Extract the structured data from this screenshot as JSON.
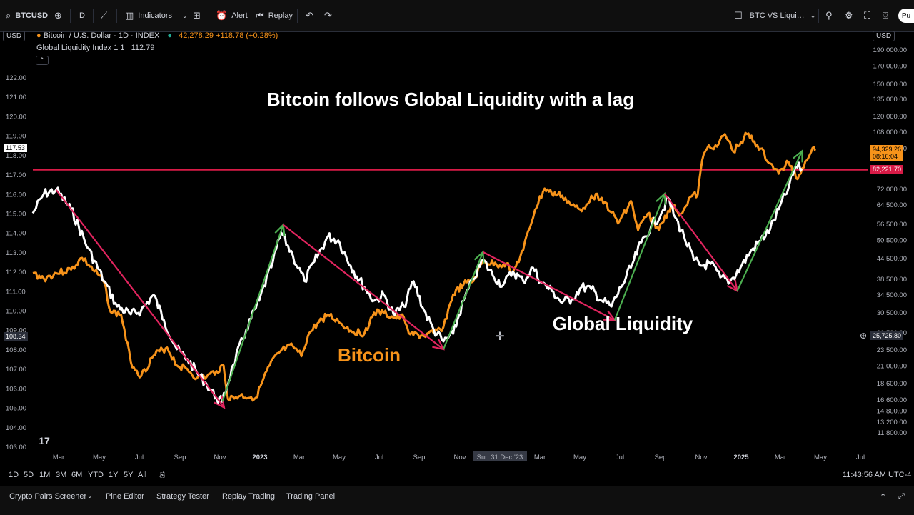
{
  "toolbar": {
    "symbol": "BTCUSD",
    "interval": "D",
    "indicators": "Indicators",
    "alert": "Alert",
    "replay": "Replay",
    "layout_name": "BTC VS Liqui…",
    "publish": "Pu"
  },
  "legend": {
    "currency_left": "USD",
    "currency_right": "USD",
    "main_title": "Bitcoin / U.S. Dollar · 1D · INDEX",
    "main_values": "42,278.29 +118.78 (+0.28%)",
    "indicator_title": "Global Liquidity Index 1 1",
    "indicator_value": "112.79"
  },
  "price_tags": {
    "left_top": "117.53",
    "left_bottom": "108.34",
    "btc_price": "94,329.26",
    "btc_timer": "08:16:04",
    "hline": "82,221.70",
    "crosshair": "25,725.80"
  },
  "timeframes": [
    "1D",
    "5D",
    "1M",
    "3M",
    "6M",
    "YTD",
    "1Y",
    "5Y",
    "All"
  ],
  "clock": "11:43:56 AM UTC-4",
  "bottom_tabs": [
    "Crypto Pairs Screener",
    "Pine Editor",
    "Strategy Tester",
    "Replay Trading",
    "Trading Panel"
  ],
  "colors": {
    "bitcoin": "#f7931a",
    "liquidity": "#ffffff",
    "down_trend": "#e0245e",
    "up_trend": "#4caf50",
    "hline": "#d81b47"
  },
  "chart_data": {
    "type": "line",
    "title": "Bitcoin follows Global Liquidity with a lag",
    "annotations": [
      "Bitcoin",
      "Global Liquidity"
    ],
    "x_ticks": [
      "Mar",
      "May",
      "Jul",
      "Sep",
      "Nov",
      "2023",
      "Mar",
      "May",
      "Jul",
      "Sep",
      "Nov",
      "Sun 31 Dec '23",
      "Mar",
      "May",
      "Jul",
      "Sep",
      "Nov",
      "2025",
      "Mar",
      "May",
      "Jul"
    ],
    "left_axis": {
      "name": "Global Liquidity Index",
      "ticks": [
        122.0,
        121.0,
        120.0,
        119.0,
        118.0,
        117.0,
        116.0,
        115.0,
        114.0,
        113.0,
        112.0,
        111.0,
        110.0,
        109.0,
        108.0,
        107.0,
        106.0,
        105.0,
        104.0,
        103.0
      ]
    },
    "right_axis": {
      "name": "BTCUSD",
      "scale": "log",
      "ticks": [
        190000,
        170000,
        150000,
        135000,
        120000,
        108000,
        96000,
        72000,
        64500,
        56500,
        50500,
        44500,
        38500,
        34500,
        30500,
        26500,
        23500,
        21000,
        18600,
        16600,
        14800,
        13200,
        11800
      ]
    },
    "hline_value": 82221.7,
    "series": [
      {
        "name": "Global Liquidity",
        "axis": "left",
        "points": [
          [
            "2022-01-15",
            115.0
          ],
          [
            "2022-02-01",
            116.0
          ],
          [
            "2022-02-20",
            116.2
          ],
          [
            "2022-03-15",
            115.2
          ],
          [
            "2022-04-10",
            113.2
          ],
          [
            "2022-05-05",
            111.5
          ],
          [
            "2022-05-25",
            110.2
          ],
          [
            "2022-06-15",
            109.8
          ],
          [
            "2022-07-01",
            110.0
          ],
          [
            "2022-07-20",
            110.8
          ],
          [
            "2022-08-05",
            109.5
          ],
          [
            "2022-08-25",
            108.0
          ],
          [
            "2022-09-10",
            107.5
          ],
          [
            "2022-09-25",
            106.8
          ],
          [
            "2022-10-10",
            106.2
          ],
          [
            "2022-10-25",
            105.5
          ],
          [
            "2022-11-03",
            105.3
          ],
          [
            "2022-11-20",
            107.2
          ],
          [
            "2022-12-10",
            109.0
          ],
          [
            "2022-12-30",
            110.5
          ],
          [
            "2023-01-20",
            112.5
          ],
          [
            "2023-02-02",
            114.0
          ],
          [
            "2023-02-20",
            112.8
          ],
          [
            "2023-03-10",
            111.5
          ],
          [
            "2023-03-25",
            112.5
          ],
          [
            "2023-04-15",
            113.8
          ],
          [
            "2023-05-01",
            113.6
          ],
          [
            "2023-05-20",
            112.3
          ],
          [
            "2023-06-10",
            111.2
          ],
          [
            "2023-06-25",
            110.5
          ],
          [
            "2023-07-10",
            110.8
          ],
          [
            "2023-07-25",
            109.8
          ],
          [
            "2023-08-10",
            110.2
          ],
          [
            "2023-08-25",
            111.5
          ],
          [
            "2023-09-10",
            110.0
          ],
          [
            "2023-09-25",
            109.0
          ],
          [
            "2023-10-10",
            108.4
          ],
          [
            "2023-10-25",
            108.8
          ],
          [
            "2023-11-10",
            110.5
          ],
          [
            "2023-11-25",
            111.6
          ],
          [
            "2023-12-10",
            112.6
          ],
          [
            "2023-12-25",
            111.8
          ],
          [
            "2024-01-10",
            111.3
          ],
          [
            "2024-01-25",
            112.0
          ],
          [
            "2024-02-10",
            111.5
          ],
          [
            "2024-02-25",
            112.2
          ],
          [
            "2024-03-10",
            111.4
          ],
          [
            "2024-03-25",
            111.0
          ],
          [
            "2024-04-10",
            110.4
          ],
          [
            "2024-04-25",
            110.6
          ],
          [
            "2024-05-10",
            111.2
          ],
          [
            "2024-05-25",
            111.1
          ],
          [
            "2024-06-10",
            110.5
          ],
          [
            "2024-06-25",
            110.2
          ],
          [
            "2024-07-10",
            111.2
          ],
          [
            "2024-07-25",
            112.2
          ],
          [
            "2024-08-10",
            113.5
          ],
          [
            "2024-08-25",
            114.3
          ],
          [
            "2024-09-10",
            115.0
          ],
          [
            "2024-09-20",
            115.8
          ],
          [
            "2024-10-01",
            114.8
          ],
          [
            "2024-10-15",
            113.8
          ],
          [
            "2024-10-30",
            112.6
          ],
          [
            "2024-11-10",
            112.3
          ],
          [
            "2024-11-25",
            112.4
          ],
          [
            "2024-12-10",
            111.7
          ],
          [
            "2024-12-25",
            111.5
          ],
          [
            "2025-01-10",
            112.2
          ],
          [
            "2025-01-25",
            113.0
          ],
          [
            "2025-02-10",
            113.6
          ],
          [
            "2025-02-25",
            114.2
          ],
          [
            "2025-03-10",
            115.2
          ],
          [
            "2025-03-25",
            116.3
          ],
          [
            "2025-04-05",
            117.4
          ],
          [
            "2025-04-15",
            117.3
          ]
        ]
      },
      {
        "name": "Bitcoin",
        "axis": "right",
        "points": [
          [
            "2022-01-15",
            40000
          ],
          [
            "2022-02-01",
            38500
          ],
          [
            "2022-02-20",
            40000
          ],
          [
            "2022-03-15",
            41000
          ],
          [
            "2022-04-01",
            44500
          ],
          [
            "2022-04-20",
            40500
          ],
          [
            "2022-05-05",
            37500
          ],
          [
            "2022-05-15",
            30500
          ],
          [
            "2022-05-31",
            30000
          ],
          [
            "2022-06-15",
            21500
          ],
          [
            "2022-07-01",
            19500
          ],
          [
            "2022-07-20",
            22500
          ],
          [
            "2022-08-10",
            23800
          ],
          [
            "2022-08-25",
            21000
          ],
          [
            "2022-09-10",
            20500
          ],
          [
            "2022-09-25",
            19200
          ],
          [
            "2022-10-10",
            19400
          ],
          [
            "2022-10-25",
            20200
          ],
          [
            "2022-11-05",
            21000
          ],
          [
            "2022-11-12",
            16600
          ],
          [
            "2022-12-01",
            17000
          ],
          [
            "2022-12-25",
            16800
          ],
          [
            "2023-01-15",
            21000
          ],
          [
            "2023-02-01",
            23200
          ],
          [
            "2023-02-20",
            24000
          ],
          [
            "2023-03-05",
            22400
          ],
          [
            "2023-03-15",
            25800
          ],
          [
            "2023-03-30",
            28200
          ],
          [
            "2023-04-15",
            30000
          ],
          [
            "2023-05-01",
            28600
          ],
          [
            "2023-05-20",
            26800
          ],
          [
            "2023-06-10",
            26200
          ],
          [
            "2023-06-25",
            30400
          ],
          [
            "2023-07-10",
            30300
          ],
          [
            "2023-07-25",
            29300
          ],
          [
            "2023-08-10",
            29400
          ],
          [
            "2023-08-20",
            26100
          ],
          [
            "2023-09-10",
            25800
          ],
          [
            "2023-09-25",
            26300
          ],
          [
            "2023-10-10",
            27500
          ],
          [
            "2023-10-25",
            34500
          ],
          [
            "2023-11-10",
            37000
          ],
          [
            "2023-11-25",
            37800
          ],
          [
            "2023-12-10",
            43500
          ],
          [
            "2023-12-31",
            42300
          ],
          [
            "2024-01-15",
            42800
          ],
          [
            "2024-01-25",
            40000
          ],
          [
            "2024-02-10",
            47000
          ],
          [
            "2024-02-28",
            62000
          ],
          [
            "2024-03-14",
            72000
          ],
          [
            "2024-03-25",
            69500
          ],
          [
            "2024-04-10",
            68500
          ],
          [
            "2024-04-25",
            64000
          ],
          [
            "2024-05-10",
            61500
          ],
          [
            "2024-05-25",
            68500
          ],
          [
            "2024-06-10",
            67500
          ],
          [
            "2024-06-25",
            61000
          ],
          [
            "2024-07-05",
            56500
          ],
          [
            "2024-07-25",
            66000
          ],
          [
            "2024-08-05",
            54000
          ],
          [
            "2024-08-20",
            60500
          ],
          [
            "2024-09-06",
            54000
          ],
          [
            "2024-09-25",
            64000
          ],
          [
            "2024-10-10",
            60500
          ],
          [
            "2024-10-25",
            68000
          ],
          [
            "2024-11-05",
            69000
          ],
          [
            "2024-11-12",
            88000
          ],
          [
            "2024-11-22",
            98000
          ],
          [
            "2024-12-05",
            97000
          ],
          [
            "2024-12-17",
            106000
          ],
          [
            "2024-12-30",
            93500
          ],
          [
            "2025-01-20",
            106000
          ],
          [
            "2025-02-05",
            98000
          ],
          [
            "2025-02-25",
            86000
          ],
          [
            "2025-03-10",
            80000
          ],
          [
            "2025-03-25",
            87000
          ],
          [
            "2025-04-08",
            77000
          ],
          [
            "2025-04-20",
            87500
          ],
          [
            "2025-05-01",
            96000
          ],
          [
            "2025-05-05",
            94329
          ]
        ]
      }
    ],
    "trend_arrows": [
      {
        "axis": "left",
        "color": "down",
        "from": [
          "2022-02-20",
          116.2
        ],
        "to": [
          "2022-11-06",
          105.0
        ]
      },
      {
        "axis": "left",
        "color": "up",
        "from": [
          "2022-11-03",
          105.3
        ],
        "to": [
          "2023-02-05",
          114.4
        ]
      },
      {
        "axis": "left",
        "color": "down",
        "from": [
          "2023-02-05",
          114.4
        ],
        "to": [
          "2023-10-10",
          108.0
        ]
      },
      {
        "axis": "left",
        "color": "up",
        "from": [
          "2023-10-10",
          108.0
        ],
        "to": [
          "2023-12-10",
          113.0
        ]
      },
      {
        "axis": "left",
        "color": "down",
        "from": [
          "2023-12-10",
          113.0
        ],
        "to": [
          "2024-06-30",
          109.5
        ]
      },
      {
        "axis": "left",
        "color": "up",
        "from": [
          "2024-06-30",
          109.5
        ],
        "to": [
          "2024-09-15",
          116.0
        ]
      },
      {
        "axis": "left",
        "color": "down",
        "from": [
          "2024-09-15",
          116.0
        ],
        "to": [
          "2025-01-05",
          111.0
        ]
      },
      {
        "axis": "left",
        "color": "up",
        "from": [
          "2025-01-05",
          111.0
        ],
        "to": [
          "2025-04-15",
          118.2
        ]
      }
    ]
  }
}
